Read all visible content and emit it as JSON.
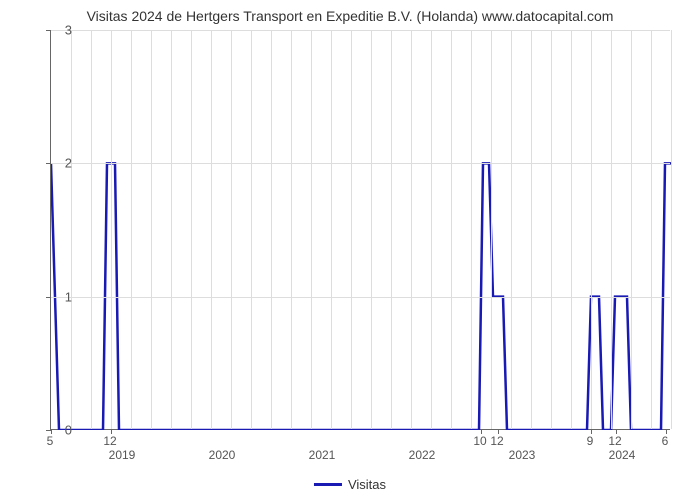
{
  "chart": {
    "type": "line",
    "title": "Visitas 2024 de Hertgers Transport en Expeditie B.V. (Holanda) www.datocapital.com",
    "title_fontsize": 14,
    "title_color": "#333333",
    "background_color": "#ffffff",
    "grid_color": "#dddddd",
    "axis_color": "#666666",
    "line_color": "#1919b3",
    "line_width": 2.5,
    "ylim": [
      0,
      3
    ],
    "ytick_step": 1,
    "yticks": [
      0,
      1,
      2,
      3
    ],
    "y_label_fontsize": 13,
    "x_label_fontsize": 12,
    "x_minor_ticks": [
      {
        "label": "5",
        "pos": 0
      },
      {
        "label": "12",
        "pos": 60
      },
      {
        "label": "10",
        "pos": 430
      },
      {
        "label": "12",
        "pos": 447
      },
      {
        "label": "9",
        "pos": 540
      },
      {
        "label": "12",
        "pos": 565
      },
      {
        "label": "6",
        "pos": 615
      }
    ],
    "x_year_ticks": [
      {
        "label": "2019",
        "pos": 72
      },
      {
        "label": "2020",
        "pos": 172
      },
      {
        "label": "2021",
        "pos": 272
      },
      {
        "label": "2022",
        "pos": 372
      },
      {
        "label": "2023",
        "pos": 472
      },
      {
        "label": "2024",
        "pos": 572
      }
    ],
    "grid_v_positions": [
      20,
      40,
      60,
      80,
      100,
      120,
      140,
      160,
      180,
      200,
      220,
      240,
      260,
      280,
      300,
      320,
      340,
      360,
      380,
      400,
      420,
      440,
      460,
      480,
      500,
      520,
      540,
      560,
      580,
      600,
      620
    ],
    "data_points": [
      {
        "x": 0,
        "y": 2
      },
      {
        "x": 8,
        "y": 0
      },
      {
        "x": 52,
        "y": 0
      },
      {
        "x": 56,
        "y": 2
      },
      {
        "x": 64,
        "y": 2
      },
      {
        "x": 68,
        "y": 0
      },
      {
        "x": 428,
        "y": 0
      },
      {
        "x": 432,
        "y": 2
      },
      {
        "x": 438,
        "y": 2
      },
      {
        "x": 442,
        "y": 1
      },
      {
        "x": 452,
        "y": 1
      },
      {
        "x": 456,
        "y": 0
      },
      {
        "x": 536,
        "y": 0
      },
      {
        "x": 540,
        "y": 1
      },
      {
        "x": 548,
        "y": 1
      },
      {
        "x": 552,
        "y": 0
      },
      {
        "x": 560,
        "y": 0
      },
      {
        "x": 564,
        "y": 1
      },
      {
        "x": 576,
        "y": 1
      },
      {
        "x": 580,
        "y": 0
      },
      {
        "x": 610,
        "y": 0
      },
      {
        "x": 614,
        "y": 2
      },
      {
        "x": 620,
        "y": 2
      }
    ],
    "legend": {
      "label": "Visitas",
      "color": "#1919b3"
    }
  }
}
